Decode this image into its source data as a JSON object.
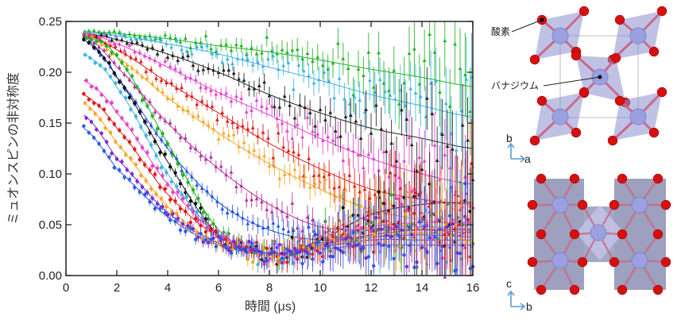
{
  "chart_data": {
    "type": "scatter",
    "xlabel": "時間 (μs)",
    "ylabel": "ミュオンスピンの非対称度",
    "xlim": [
      0,
      16
    ],
    "ylim": [
      0,
      0.25
    ],
    "xticks": [
      "0",
      "2",
      "4",
      "6",
      "8",
      "10",
      "12",
      "14",
      "16"
    ],
    "yticks": [
      "0.00",
      "0.05",
      "0.10",
      "0.15",
      "0.20",
      "0.25"
    ],
    "grid": false,
    "fit_lines": true,
    "x": [
      0.7,
      2,
      4,
      6,
      8,
      10,
      12,
      14,
      16
    ],
    "series": [
      {
        "color": "#22b322",
        "marker": "triangle",
        "values": [
          0.24,
          0.238,
          0.233,
          0.226,
          0.22,
          0.212,
          0.203,
          0.195,
          0.186
        ]
      },
      {
        "color": "#3cb4e6",
        "marker": "triangle",
        "values": [
          0.239,
          0.236,
          0.228,
          0.218,
          0.205,
          0.192,
          0.178,
          0.167,
          0.156
        ]
      },
      {
        "color": "#222222",
        "marker": "triangle",
        "values": [
          0.238,
          0.232,
          0.218,
          0.2,
          0.178,
          0.16,
          0.145,
          0.135,
          0.125
        ]
      },
      {
        "color": "#e640c8",
        "marker": "triangle",
        "values": [
          0.238,
          0.228,
          0.205,
          0.18,
          0.158,
          0.135,
          0.115,
          0.1,
          0.09
        ]
      },
      {
        "color": "#e01818",
        "marker": "triangle",
        "values": [
          0.237,
          0.222,
          0.19,
          0.16,
          0.13,
          0.105,
          0.085,
          0.075,
          0.07
        ]
      },
      {
        "color": "#f5a623",
        "marker": "triangle",
        "values": [
          0.237,
          0.215,
          0.175,
          0.14,
          0.11,
          0.085,
          0.065,
          0.055,
          0.05
        ]
      },
      {
        "color": "#b0309a",
        "marker": "triangle",
        "values": [
          0.236,
          0.205,
          0.15,
          0.105,
          0.07,
          0.048,
          0.045,
          0.045,
          0.042
        ]
      },
      {
        "color": "#2050e0",
        "marker": "triangle",
        "values": [
          0.235,
          0.195,
          0.125,
          0.072,
          0.045,
          0.035,
          0.038,
          0.04,
          0.038
        ]
      },
      {
        "color": "#22b322",
        "marker": "circle",
        "values": [
          0.235,
          0.215,
          0.13,
          0.045,
          0.022,
          0.03,
          0.045,
          0.045,
          0.045
        ]
      },
      {
        "color": "#111111",
        "marker": "circle",
        "values": [
          0.232,
          0.195,
          0.112,
          0.04,
          0.02,
          0.035,
          0.06,
          0.07,
          0.072
        ]
      },
      {
        "color": "#3cb4e6",
        "marker": "circle",
        "values": [
          0.218,
          0.185,
          0.1,
          0.04,
          0.022,
          0.032,
          0.045,
          0.048,
          0.046
        ]
      },
      {
        "color": "#e640c8",
        "marker": "circle",
        "values": [
          0.192,
          0.16,
          0.09,
          0.04,
          0.022,
          0.032,
          0.048,
          0.052,
          0.052
        ]
      },
      {
        "color": "#e01818",
        "marker": "circle",
        "values": [
          0.178,
          0.145,
          0.08,
          0.038,
          0.022,
          0.03,
          0.04,
          0.045,
          0.045
        ]
      },
      {
        "color": "#f5a623",
        "marker": "circle",
        "values": [
          0.17,
          0.13,
          0.068,
          0.032,
          0.02,
          0.028,
          0.038,
          0.042,
          0.04
        ]
      },
      {
        "color": "#7a2ad0",
        "marker": "circle",
        "values": [
          0.158,
          0.115,
          0.062,
          0.032,
          0.022,
          0.028,
          0.035,
          0.035,
          0.035
        ]
      },
      {
        "color": "#2a5ae8",
        "marker": "circle",
        "values": [
          0.145,
          0.105,
          0.058,
          0.03,
          0.022,
          0.026,
          0.03,
          0.03,
          0.03
        ]
      }
    ]
  },
  "structure": {
    "label_oxygen": "酸素",
    "label_vanadium": "バナジウム",
    "top_axes": {
      "up": "b",
      "right": "a"
    },
    "bottom_axes": {
      "up": "c",
      "right": "b"
    },
    "colors": {
      "oxygen": "#d41010",
      "vanadium": "#9aa0e0",
      "polyhedron": "#8a8fd0",
      "arrow": "#5b9bd5"
    }
  }
}
